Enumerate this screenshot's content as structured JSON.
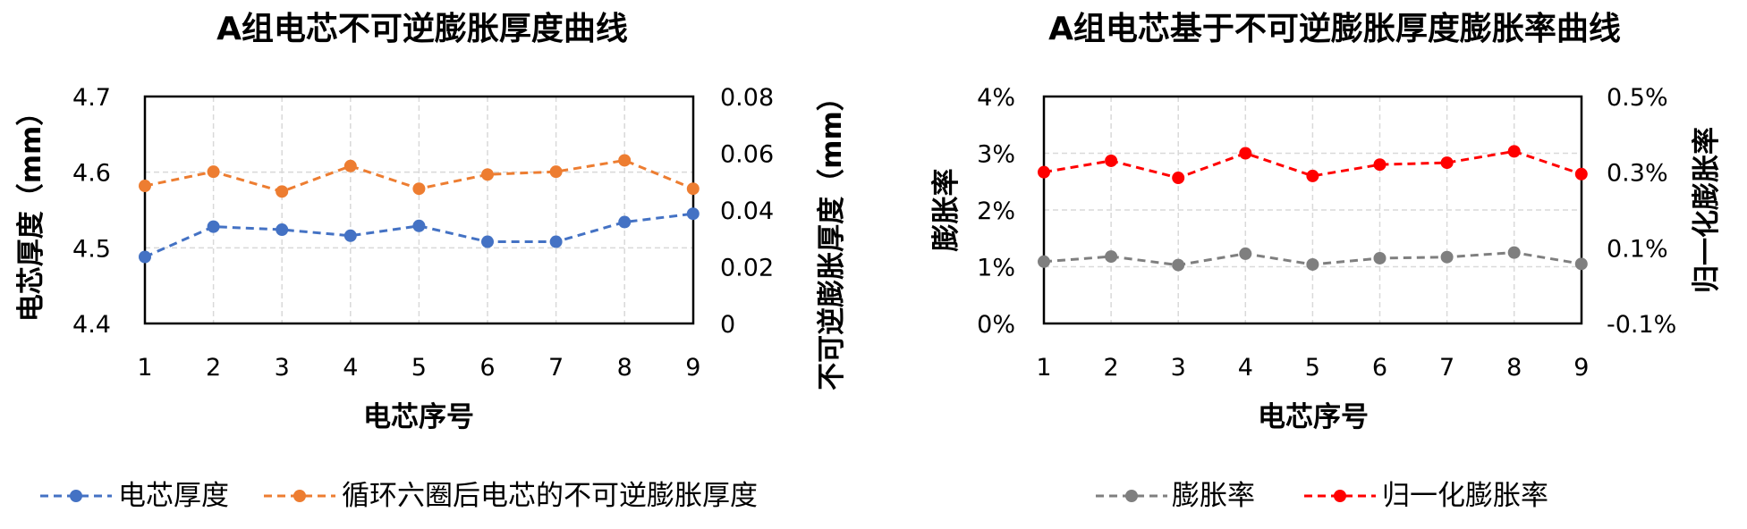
{
  "chart_data": [
    {
      "type": "line",
      "title": "A组电芯不可逆膨胀厚度曲线",
      "xlabel": "电芯序号",
      "ylabel": "电芯厚度（mm）",
      "y2label": "不可逆膨胀厚度（mm）",
      "x": [
        1,
        2,
        3,
        4,
        5,
        6,
        7,
        8,
        9
      ],
      "ylim": [
        4.4,
        4.7
      ],
      "yticks": [
        "4.4",
        "4.5",
        "4.6",
        "4.7"
      ],
      "y2lim": [
        0,
        0.08
      ],
      "y2ticks": [
        "0",
        "0.02",
        "0.04",
        "0.06",
        "0.08"
      ],
      "grid": true,
      "legend_position": "bottom",
      "series": [
        {
          "name": "电芯厚度",
          "axis": "left",
          "color": "#4472C4",
          "values": [
            4.488,
            4.528,
            4.524,
            4.516,
            4.529,
            4.508,
            4.508,
            4.534,
            4.545
          ]
        },
        {
          "name": "循环六圈后电芯的不可逆膨胀厚度",
          "axis": "right",
          "color": "#ED7D31",
          "values": [
            0.0485,
            0.0535,
            0.0465,
            0.0555,
            0.0475,
            0.0525,
            0.0535,
            0.0575,
            0.0475
          ]
        }
      ]
    },
    {
      "type": "line",
      "title": "A组电芯基于不可逆膨胀厚度膨胀率曲线",
      "xlabel": "电芯序号",
      "ylabel": "膨胀率",
      "y2label": "归一化膨胀率",
      "x": [
        1,
        2,
        3,
        4,
        5,
        6,
        7,
        8,
        9
      ],
      "ylim": [
        0,
        4
      ],
      "yticks": [
        "0%",
        "1%",
        "2%",
        "3%",
        "4%"
      ],
      "y2lim": [
        -0.1,
        0.5
      ],
      "y2ticks": [
        "-0.1%",
        "0.1%",
        "0.3%",
        "0.5%"
      ],
      "grid": true,
      "legend_position": "bottom",
      "series": [
        {
          "name": "膨胀率",
          "axis": "left",
          "color": "#7F7F7F",
          "values": [
            1.09,
            1.18,
            1.03,
            1.23,
            1.04,
            1.15,
            1.17,
            1.25,
            1.05
          ]
        },
        {
          "name": "归一化膨胀率",
          "axis": "right",
          "color": "#FF0000",
          "values": [
            0.3,
            0.33,
            0.285,
            0.35,
            0.29,
            0.32,
            0.325,
            0.355,
            0.295
          ]
        }
      ]
    }
  ]
}
